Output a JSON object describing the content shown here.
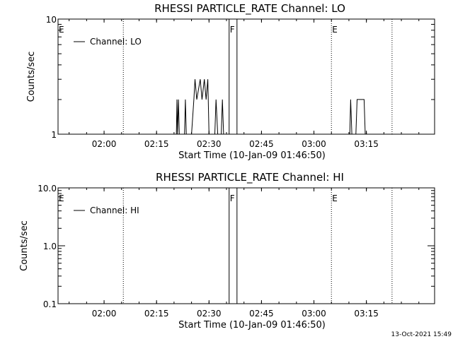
{
  "footer": {
    "timestamp": "13-Oct-2021 15:49"
  },
  "chart_data": [
    {
      "type": "line",
      "title": "RHESSI PARTICLE_RATE Channel: LO",
      "xlabel": "Start Time (10-Jan-09 01:46:50)",
      "ylabel": "Counts/sec",
      "yscale": "log",
      "xlim": [
        "01:46:50",
        "03:34:30"
      ],
      "ylim": [
        1,
        10
      ],
      "x_ticks": [
        "02:00",
        "02:15",
        "02:30",
        "02:45",
        "03:00",
        "03:15"
      ],
      "y_ticks": [
        {
          "value": 1,
          "label": "1"
        },
        {
          "value": 10,
          "label": "10"
        }
      ],
      "legend": {
        "entry": "Channel: LO",
        "placement": "top-left"
      },
      "markers": [
        {
          "label": "E",
          "time": "01:46:50",
          "style": "dotted"
        },
        {
          "label": "",
          "time": "02:05:30",
          "style": "dotted"
        },
        {
          "label": "F",
          "time": "02:35:45",
          "style": "solid"
        },
        {
          "label": "",
          "time": "02:38:00",
          "style": "solid"
        },
        {
          "label": "E",
          "time": "03:05:00",
          "style": "dotted"
        },
        {
          "label": "",
          "time": "03:22:20",
          "style": "dotted"
        }
      ],
      "series": [
        {
          "name": "Channel: LO",
          "points": [
            [
              "02:20:40",
              1
            ],
            [
              "02:20:50",
              2
            ],
            [
              "02:21:00",
              1
            ],
            [
              "02:21:15",
              2
            ],
            [
              "02:21:30",
              1
            ],
            [
              "02:23:00",
              1
            ],
            [
              "02:23:15",
              2
            ],
            [
              "02:23:30",
              1
            ],
            [
              "02:25:00",
              1
            ],
            [
              "02:25:40",
              2
            ],
            [
              "02:26:00",
              3
            ],
            [
              "02:26:30",
              2
            ],
            [
              "02:27:30",
              3
            ],
            [
              "02:28:00",
              2
            ],
            [
              "02:28:40",
              3
            ],
            [
              "02:29:10",
              2
            ],
            [
              "02:29:40",
              3
            ],
            [
              "02:30:00",
              1
            ],
            [
              "02:31:40",
              1
            ],
            [
              "02:32:00",
              2
            ],
            [
              "02:32:30",
              1
            ],
            [
              "02:33:30",
              1
            ],
            [
              "02:33:50",
              2
            ],
            [
              "02:34:10",
              1
            ],
            [
              "03:10:15",
              1
            ],
            [
              "03:10:30",
              2
            ],
            [
              "03:10:50",
              1
            ],
            [
              "03:12:00",
              1
            ],
            [
              "03:12:20",
              2
            ],
            [
              "03:14:20",
              2
            ],
            [
              "03:14:40",
              1
            ]
          ]
        }
      ]
    },
    {
      "type": "line",
      "title": "RHESSI PARTICLE_RATE Channel: HI",
      "xlabel": "Start Time (10-Jan-09 01:46:50)",
      "ylabel": "Counts/sec",
      "yscale": "log",
      "xlim": [
        "01:46:50",
        "03:34:30"
      ],
      "ylim": [
        0.1,
        10
      ],
      "x_ticks": [
        "02:00",
        "02:15",
        "02:30",
        "02:45",
        "03:00",
        "03:15"
      ],
      "y_ticks": [
        {
          "value": 0.1,
          "label": "0.1"
        },
        {
          "value": 1,
          "label": "1.0"
        },
        {
          "value": 10,
          "label": "10.0"
        }
      ],
      "legend": {
        "entry": "Channel: HI",
        "placement": "top-left"
      },
      "markers": [
        {
          "label": "E",
          "time": "01:46:50",
          "style": "dotted"
        },
        {
          "label": "",
          "time": "02:05:30",
          "style": "dotted"
        },
        {
          "label": "F",
          "time": "02:35:45",
          "style": "solid"
        },
        {
          "label": "",
          "time": "02:38:00",
          "style": "solid"
        },
        {
          "label": "E",
          "time": "03:05:00",
          "style": "dotted"
        },
        {
          "label": "",
          "time": "03:22:20",
          "style": "dotted"
        }
      ],
      "series": [
        {
          "name": "Channel: HI",
          "points": []
        }
      ]
    }
  ]
}
